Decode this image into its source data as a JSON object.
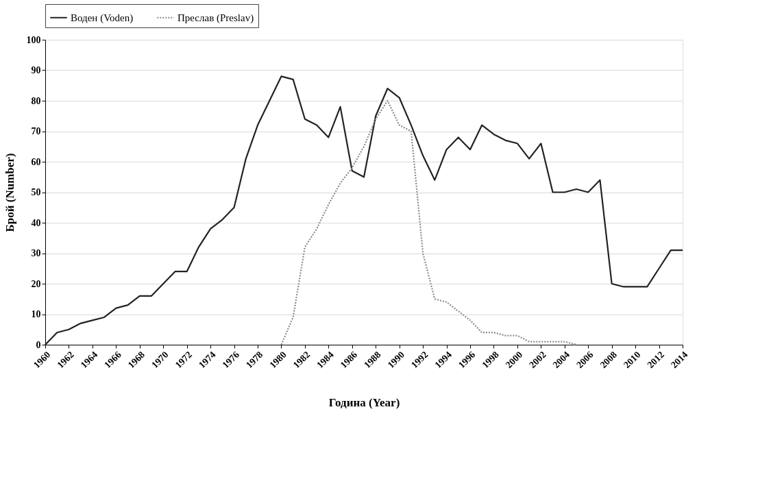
{
  "chart_data": {
    "type": "line",
    "xlabel": "Година (Year)",
    "ylabel": "Брой (Number)",
    "x": [
      1960,
      1961,
      1962,
      1963,
      1964,
      1965,
      1966,
      1967,
      1968,
      1969,
      1970,
      1971,
      1972,
      1973,
      1974,
      1975,
      1976,
      1977,
      1978,
      1979,
      1980,
      1981,
      1982,
      1983,
      1984,
      1985,
      1986,
      1987,
      1988,
      1989,
      1990,
      1991,
      1992,
      1993,
      1994,
      1995,
      1996,
      1997,
      1998,
      1999,
      2000,
      2001,
      2002,
      2003,
      2004,
      2005,
      2006,
      2007,
      2008,
      2009,
      2010,
      2011,
      2012,
      2013,
      2014
    ],
    "series": [
      {
        "name": "Воден (Voden)",
        "color": "#222222",
        "line_style": "solid",
        "values": [
          0,
          4,
          5,
          7,
          8,
          9,
          12,
          13,
          16,
          16,
          20,
          24,
          24,
          32,
          38,
          41,
          45,
          61,
          72,
          80,
          88,
          87,
          74,
          72,
          68,
          78,
          57,
          55,
          75,
          84,
          81,
          72,
          62,
          54,
          64,
          68,
          64,
          72,
          69,
          67,
          66,
          61,
          66,
          50,
          50,
          51,
          50,
          54,
          20,
          19,
          19,
          19,
          25,
          31,
          31
        ]
      },
      {
        "name": "Преслав (Preslav)",
        "color": "#8a8a8a",
        "line_style": "dotted",
        "values": [
          null,
          null,
          null,
          null,
          null,
          null,
          null,
          null,
          null,
          null,
          null,
          null,
          null,
          null,
          null,
          null,
          null,
          null,
          null,
          null,
          0,
          9,
          32,
          38,
          46,
          53,
          58,
          65,
          74,
          80,
          72,
          70,
          30,
          15,
          14,
          11,
          8,
          4,
          4,
          3,
          3,
          1,
          1,
          1,
          1,
          0,
          null,
          null,
          null,
          null,
          null,
          null,
          null,
          null,
          null
        ]
      }
    ],
    "xlim": [
      1960,
      2014
    ],
    "xticks": [
      1960,
      1962,
      1964,
      1966,
      1968,
      1970,
      1972,
      1974,
      1976,
      1978,
      1980,
      1982,
      1984,
      1986,
      1988,
      1990,
      1992,
      1994,
      1996,
      1998,
      2000,
      2002,
      2004,
      2006,
      2008,
      2010,
      2012,
      2014
    ],
    "ylim": [
      0,
      100
    ],
    "yticks": [
      0,
      10,
      20,
      30,
      40,
      50,
      60,
      70,
      80,
      90,
      100
    ],
    "grid": "y",
    "legend": "top",
    "marker": "none"
  }
}
